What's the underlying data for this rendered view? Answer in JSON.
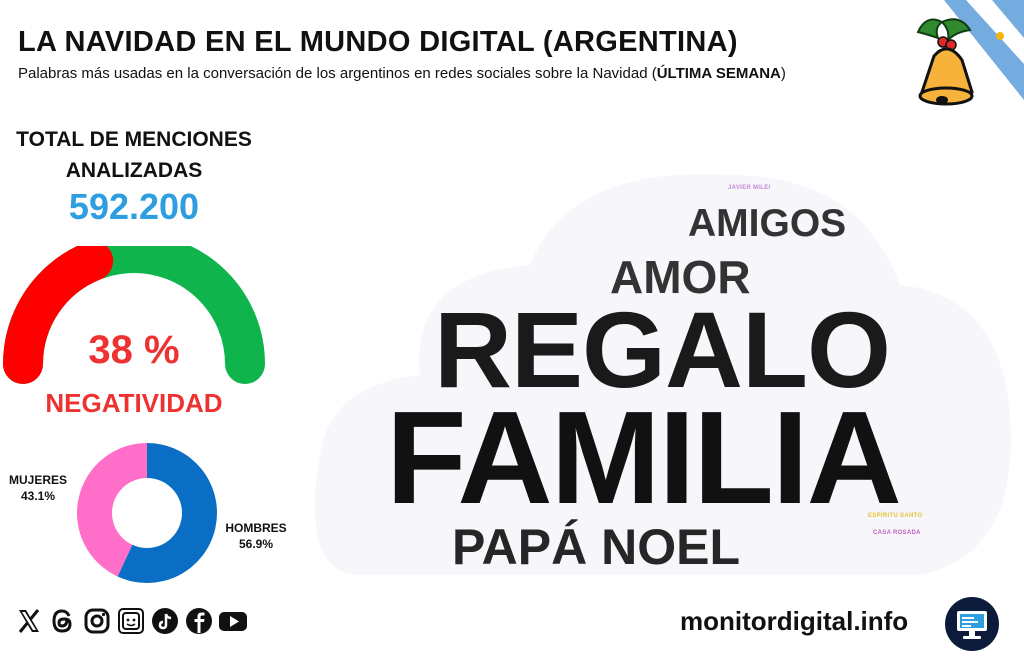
{
  "header": {
    "title": "LA NAVIDAD EN EL MUNDO DIGITAL (ARGENTINA)",
    "subtitle_pre": "Palabras más usadas en la conversación de los argentinos en redes sociales sobre la Navidad (",
    "subtitle_bold": "ÚLTIMA SEMANA",
    "subtitle_post": ")"
  },
  "kpi": {
    "label_line1": "TOTAL DE MENCIONES",
    "label_line2": "ANALIZADAS",
    "value": "592.200"
  },
  "negativity": {
    "value_text": "38 %",
    "label": "NEGATIVIDAD"
  },
  "gender": {
    "women_label": "MUJERES",
    "women_value": "43.1%",
    "men_label": "HOMBRES",
    "men_value": "56.9%"
  },
  "chart_data": [
    {
      "type": "gauge",
      "title": "NEGATIVIDAD",
      "value": 38,
      "unit": "%",
      "range": [
        0,
        100
      ],
      "colors": {
        "value": "#ff0000",
        "rest": "#10b44c"
      }
    },
    {
      "type": "pie",
      "subtype": "donut",
      "categories": [
        "MUJERES",
        "HOMBRES"
      ],
      "values": [
        43.1,
        56.9
      ],
      "unit": "%",
      "colors": [
        "#ff6fc9",
        "#0a6fc4"
      ]
    },
    {
      "type": "wordcloud",
      "words": [
        {
          "text": "JAVIER MILEI",
          "rank": 7,
          "color": "#c38ad6"
        },
        {
          "text": "AMIGOS",
          "rank": 4,
          "color": "#333333"
        },
        {
          "text": "AMOR",
          "rank": 3,
          "color": "#333333"
        },
        {
          "text": "REGALO",
          "rank": 2,
          "color": "#1a1a1a"
        },
        {
          "text": "FAMILIA",
          "rank": 1,
          "color": "#111111"
        },
        {
          "text": "ESPÍRITU SANTO",
          "rank": 6,
          "color": "#e4c23a"
        },
        {
          "text": "CASA ROSADA",
          "rank": 8,
          "color": "#c060c0"
        },
        {
          "text": "PAPÁ NOEL",
          "rank": 5,
          "color": "#262626"
        }
      ]
    }
  ],
  "footer": {
    "site": "monitordigital.info",
    "social_icons": [
      "x-icon",
      "threads-icon",
      "instagram-icon",
      "news-icon",
      "tiktok-icon",
      "facebook-icon",
      "youtube-icon"
    ]
  },
  "colors": {
    "accent_blue": "#2e9ee0",
    "negative_red": "#ee3232",
    "flag_blue": "#74acdf"
  }
}
